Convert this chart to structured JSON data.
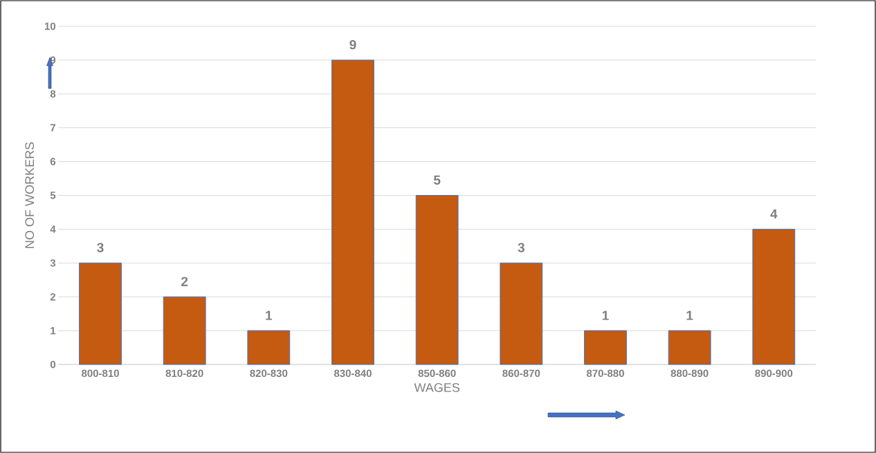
{
  "chart_data": {
    "type": "bar",
    "xlabel": "WAGES",
    "ylabel": "NO  OF WORKERS",
    "categories": [
      "800-810",
      "810-820",
      "820-830",
      "830-840",
      "850-860",
      "860-870",
      "870-880",
      "880-890",
      "890-900"
    ],
    "values": [
      3,
      2,
      1,
      9,
      5,
      3,
      1,
      1,
      4
    ],
    "color": "#c55a11",
    "ylim": [
      0,
      10
    ],
    "yticks": [
      0,
      1,
      2,
      3,
      4,
      5,
      6,
      7,
      8,
      9,
      10
    ],
    "grid": "y",
    "data_labels": true
  }
}
